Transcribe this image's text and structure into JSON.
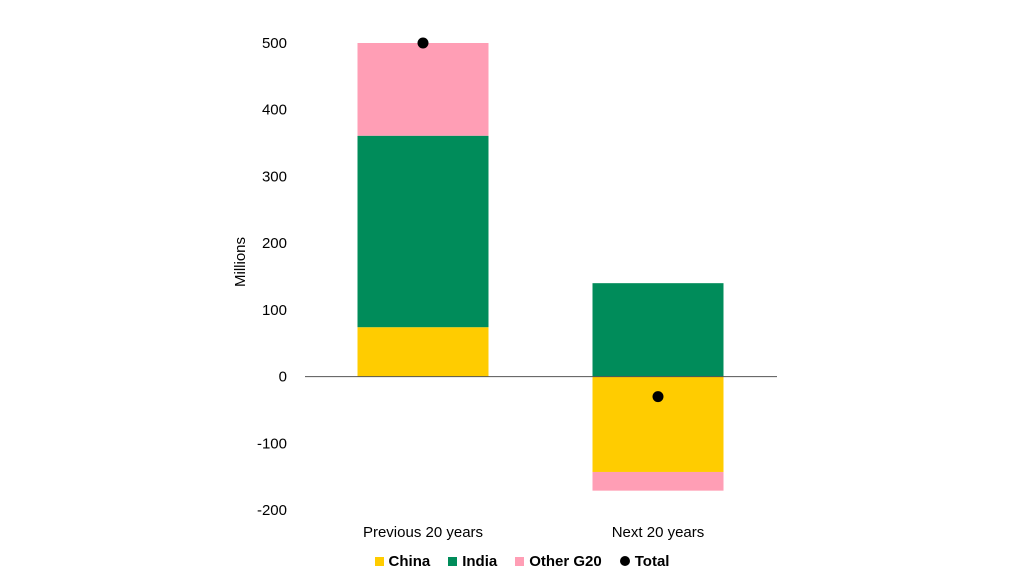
{
  "chart_data": {
    "type": "bar",
    "stacked": true,
    "categories": [
      "Previous 20 years",
      "Next 20 years"
    ],
    "ylabel": "Millions",
    "ylim": [
      -200,
      500
    ],
    "yticks": [
      500,
      400,
      300,
      200,
      100,
      0,
      -100,
      -200
    ],
    "ytick_labels": [
      "500",
      "400",
      "300",
      "200",
      "100",
      "0",
      "-100",
      "-200"
    ],
    "grid": false,
    "legend_position": "bottom",
    "series": [
      {
        "name": "China",
        "color": "#FFCC00",
        "values": [
          74,
          -143
        ]
      },
      {
        "name": "India",
        "color": "#008C5A",
        "values": [
          287,
          140
        ]
      },
      {
        "name": "Other G20",
        "color": "#FF9EB5",
        "values": [
          139,
          -28
        ]
      }
    ],
    "total": {
      "name": "Total",
      "color": "#000000",
      "values": [
        500,
        -30
      ]
    }
  }
}
